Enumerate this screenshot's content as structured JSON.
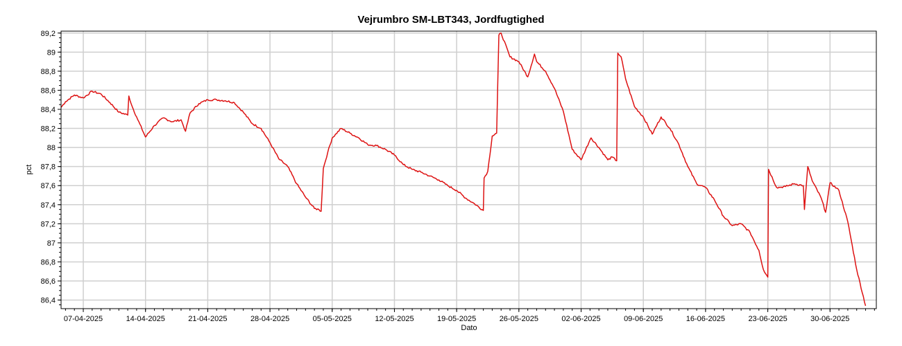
{
  "chart_data": {
    "type": "line",
    "title": "Vejrumbro SM-LBT343, Jordfugtighed",
    "xlabel": "Dato",
    "ylabel": "pct",
    "ylim": [
      86.31,
      89.22
    ],
    "xlim": [
      "2025-04-04T12:00",
      "2025-07-05T05:00"
    ],
    "grid": true,
    "line_color": "#dd1111",
    "x_ticks": [
      "2025-04-07",
      "2025-04-14",
      "2025-04-21",
      "2025-04-28",
      "2025-05-05",
      "2025-05-12",
      "2025-05-19",
      "2025-05-26",
      "2025-06-02",
      "2025-06-09",
      "2025-06-16",
      "2025-06-23",
      "2025-06-30"
    ],
    "x_tick_labels": [
      "07-04-2025",
      "14-04-2025",
      "21-04-2025",
      "28-04-2025",
      "05-05-2025",
      "12-05-2025",
      "19-05-2025",
      "26-05-2025",
      "02-06-2025",
      "09-06-2025",
      "16-06-2025",
      "23-06-2025",
      "30-06-2025"
    ],
    "y_ticks": [
      86.4,
      86.6,
      86.8,
      87,
      87.2,
      87.4,
      87.6,
      87.8,
      88,
      88.2,
      88.4,
      88.6,
      88.8,
      89,
      89.2
    ],
    "y_tick_labels": [
      "86,4",
      "86,6",
      "86,8",
      "87",
      "87,2",
      "87,4",
      "87,6",
      "87,8",
      "88",
      "88,2",
      "88,4",
      "88,6",
      "88,8",
      "89",
      "89,2"
    ],
    "series": [
      {
        "x": [
          "2025-04-04T12:00",
          "2025-04-05T00:00",
          "2025-04-06T00:00",
          "2025-04-07T00:00",
          "2025-04-08T00:00",
          "2025-04-09T00:00",
          "2025-04-10T00:00",
          "2025-04-11T00:00",
          "2025-04-12T00:00",
          "2025-04-12T03:00",
          "2025-04-12T12:00",
          "2025-04-13T00:00",
          "2025-04-14T00:00",
          "2025-04-15T00:00",
          "2025-04-16T00:00",
          "2025-04-17T00:00",
          "2025-04-18T00:00",
          "2025-04-18T12:00",
          "2025-04-19T00:00",
          "2025-04-20T00:00",
          "2025-04-21T00:00",
          "2025-04-22T00:00",
          "2025-04-23T00:00",
          "2025-04-24T00:00",
          "2025-04-25T00:00",
          "2025-04-26T00:00",
          "2025-04-27T00:00",
          "2025-04-28T00:00",
          "2025-04-29T00:00",
          "2025-04-30T00:00",
          "2025-05-01T00:00",
          "2025-05-02T00:00",
          "2025-05-03T00:00",
          "2025-05-03T12:00",
          "2025-05-03T18:00",
          "2025-05-04T00:00",
          "2025-05-04T12:00",
          "2025-05-05T00:00",
          "2025-05-06T00:00",
          "2025-05-07T00:00",
          "2025-05-08T00:00",
          "2025-05-09T00:00",
          "2025-05-10T00:00",
          "2025-05-11T00:00",
          "2025-05-12T00:00",
          "2025-05-13T00:00",
          "2025-05-14T00:00",
          "2025-05-15T00:00",
          "2025-05-16T00:00",
          "2025-05-17T00:00",
          "2025-05-18T00:00",
          "2025-05-19T00:00",
          "2025-05-20T00:00",
          "2025-05-21T00:00",
          "2025-05-22T00:00",
          "2025-05-22T02:00",
          "2025-05-22T12:00",
          "2025-05-23T00:00",
          "2025-05-23T12:00",
          "2025-05-23T18:00",
          "2025-05-24T00:00",
          "2025-05-25T00:00",
          "2025-05-26T00:00",
          "2025-05-27T00:00",
          "2025-05-27T18:00",
          "2025-05-28T00:00",
          "2025-05-29T00:00",
          "2025-05-30T00:00",
          "2025-05-31T00:00",
          "2025-06-01T00:00",
          "2025-06-02T00:00",
          "2025-06-03T00:00",
          "2025-06-03T03:00",
          "2025-06-04T00:00",
          "2025-06-05T00:00",
          "2025-06-05T12:00",
          "2025-06-06T00:00",
          "2025-06-06T03:00",
          "2025-06-06T12:00",
          "2025-06-07T00:00",
          "2025-06-08T00:00",
          "2025-06-09T00:00",
          "2025-06-10T00:00",
          "2025-06-11T00:00",
          "2025-06-12T00:00",
          "2025-06-13T00:00",
          "2025-06-14T00:00",
          "2025-06-15T00:00",
          "2025-06-16T00:00",
          "2025-06-17T00:00",
          "2025-06-18T00:00",
          "2025-06-19T00:00",
          "2025-06-20T00:00",
          "2025-06-21T00:00",
          "2025-06-22T00:00",
          "2025-06-22T12:00",
          "2025-06-23T00:00",
          "2025-06-23T02:00",
          "2025-06-24T00:00",
          "2025-06-25T00:00",
          "2025-06-26T00:00",
          "2025-06-27T00:00",
          "2025-06-27T03:00",
          "2025-06-27T12:00",
          "2025-06-28T00:00",
          "2025-06-29T00:00",
          "2025-06-29T12:00",
          "2025-06-30T00:00",
          "2025-07-01T00:00",
          "2025-07-02T00:00",
          "2025-07-03T00:00",
          "2025-07-04T00:00"
        ],
        "values": [
          88.42,
          88.48,
          88.55,
          88.52,
          88.59,
          88.56,
          88.47,
          88.37,
          88.34,
          88.54,
          88.43,
          88.32,
          88.11,
          88.23,
          88.31,
          88.27,
          88.29,
          88.17,
          88.36,
          88.46,
          88.5,
          88.5,
          88.49,
          88.47,
          88.37,
          88.25,
          88.2,
          88.05,
          87.88,
          87.8,
          87.62,
          87.48,
          87.36,
          87.35,
          87.33,
          87.78,
          87.95,
          88.1,
          88.2,
          88.15,
          88.1,
          88.03,
          88.02,
          87.98,
          87.92,
          87.82,
          87.77,
          87.74,
          87.7,
          87.66,
          87.6,
          87.55,
          87.47,
          87.41,
          87.34,
          87.68,
          87.75,
          88.12,
          88.15,
          89.18,
          89.2,
          88.95,
          88.9,
          88.74,
          88.98,
          88.9,
          88.8,
          88.62,
          88.38,
          87.98,
          87.87,
          88.08,
          88.1,
          88.0,
          87.87,
          87.9,
          87.86,
          88.99,
          88.95,
          88.72,
          88.43,
          88.32,
          88.14,
          88.32,
          88.2,
          88.03,
          87.8,
          87.62,
          87.58,
          87.45,
          87.28,
          87.18,
          87.2,
          87.11,
          86.92,
          86.72,
          86.64,
          87.77,
          87.58,
          87.59,
          87.62,
          87.6,
          87.35,
          87.8,
          87.65,
          87.47,
          87.32,
          87.63,
          87.55,
          87.22,
          86.72,
          86.34
        ]
      }
    ]
  }
}
